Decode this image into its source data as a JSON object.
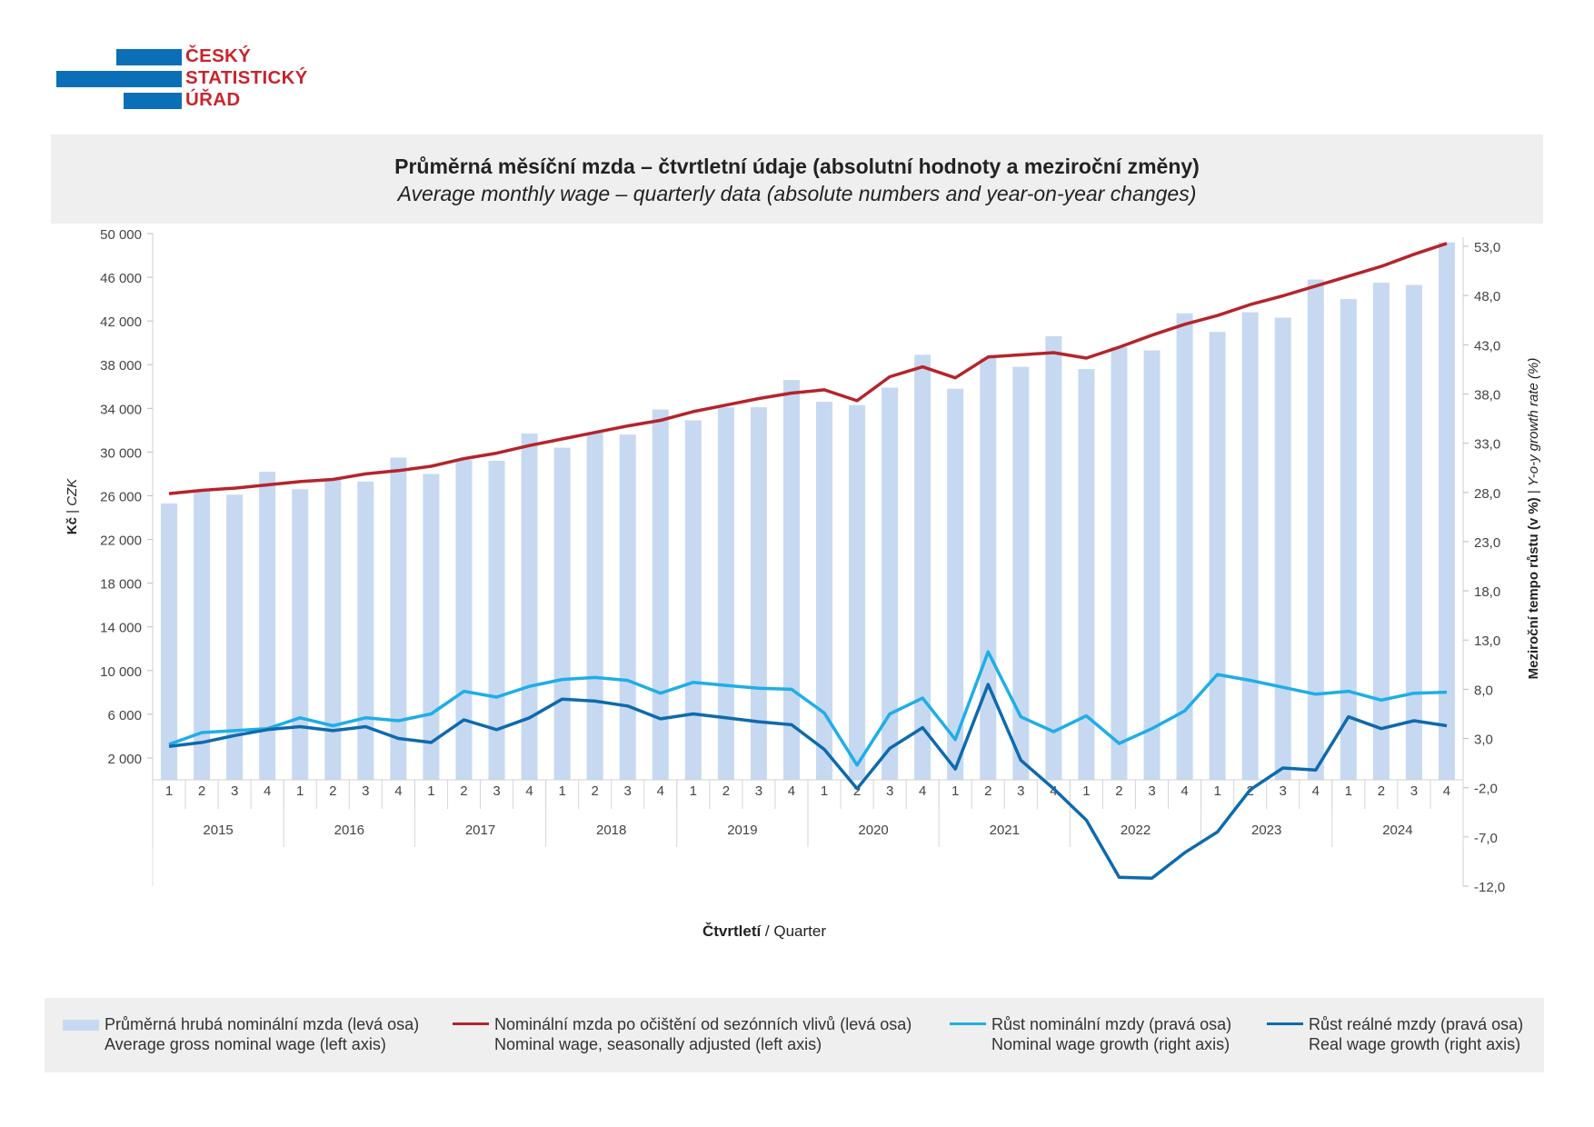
{
  "logo": {
    "line1": "ČESKÝ",
    "line2": "STATISTICKÝ",
    "line3": "ÚŘAD"
  },
  "header": {
    "title_cz": "Průměrná měsíční mzda – čtvrtletní údaje (absolutní hodnoty a meziroční změny)",
    "title_en": "Average monthly wage – quarterly data (absolute numbers and year-on-year changes)"
  },
  "colors": {
    "bars": "#c6d9f1",
    "seasonal": "#b5242b",
    "nominal_growth": "#1eaee7",
    "real_growth": "#0e6aad"
  },
  "chart_data": {
    "type": "bar+line",
    "title": "Průměrná měsíční mzda – čtvrtletní údaje (absolutní hodnoty a meziroční změny)",
    "subtitle": "Average monthly wage – quarterly data (absolute numbers and year-on-year changes)",
    "xlabel_cz": "Čtvrtletí",
    "xlabel_en": "Quarter",
    "ylabel_left_cz": "Kč",
    "ylabel_left_en": "CZK",
    "ylabel_right_cz": "Meziroční tempo růstu (v %)",
    "ylabel_right_en": "Y-o-y growth rate (%)",
    "years": [
      "2015",
      "2016",
      "2017",
      "2018",
      "2019",
      "2020",
      "2021",
      "2022",
      "2023",
      "2024"
    ],
    "quarters": [
      "1",
      "2",
      "3",
      "4"
    ],
    "y_left_ticks": [
      "50 000",
      "46 000",
      "42 000",
      "38 000",
      "34 000",
      "30 000",
      "26 000",
      "22 000",
      "18 000",
      "14 000",
      "10 000",
      "6 000",
      "2 000"
    ],
    "y_left_tick_values": [
      50000,
      46000,
      42000,
      38000,
      34000,
      30000,
      26000,
      22000,
      18000,
      14000,
      10000,
      6000,
      2000
    ],
    "y_left_range": [
      0,
      50000
    ],
    "y_right_ticks": [
      "53,0",
      "48,0",
      "43,0",
      "38,0",
      "33,0",
      "28,0",
      "23,0",
      "18,0",
      "13,0",
      "8,0",
      "3,0",
      "-2,0",
      "-7,0",
      "-12,0"
    ],
    "y_right_tick_values": [
      53,
      48,
      43,
      38,
      33,
      28,
      23,
      18,
      13,
      8,
      3,
      -2,
      -7,
      -12
    ],
    "y_right_range": [
      -12,
      53
    ],
    "grid": false,
    "legend_position": "bottom",
    "series": [
      {
        "name": "Průměrná hrubá nominální mzda (levá osa)",
        "name_en": "Average gross nominal wage (left axis)",
        "type": "bar",
        "axis": "left",
        "values": [
          25300,
          26500,
          26100,
          28200,
          26600,
          27600,
          27300,
          29500,
          28000,
          29300,
          29200,
          31700,
          30400,
          31800,
          31600,
          33900,
          32900,
          34100,
          34100,
          36600,
          34600,
          34300,
          35900,
          38900,
          35800,
          38600,
          37800,
          40600,
          37600,
          39600,
          39300,
          42700,
          41000,
          42800,
          42300,
          45800,
          44000,
          45500,
          45300,
          49200
        ]
      },
      {
        "name": "Nominální mzda po očištění od sezónních vlivů (levá osa)",
        "name_en": "Nominal wage, seasonally adjusted (left axis)",
        "type": "line",
        "axis": "left",
        "values": [
          26200,
          26500,
          26700,
          27000,
          27300,
          27500,
          28000,
          28300,
          28700,
          29400,
          29900,
          30600,
          31200,
          31800,
          32400,
          32900,
          33700,
          34300,
          34900,
          35400,
          35700,
          34700,
          36900,
          37800,
          36800,
          38700,
          38900,
          39100,
          38600,
          39600,
          40700,
          41700,
          42500,
          43500,
          44300,
          45200,
          46100,
          47000,
          48100,
          49100
        ]
      },
      {
        "name": "Růst nominální mzdy (pravá osa)",
        "name_en": "Nominal wage growth (right axis)",
        "type": "line",
        "axis": "right",
        "values": [
          2.4,
          3.6,
          3.8,
          4.0,
          5.1,
          4.3,
          5.1,
          4.8,
          5.5,
          7.8,
          7.2,
          8.3,
          9.0,
          9.2,
          8.9,
          7.6,
          8.7,
          8.4,
          8.1,
          8.0,
          5.6,
          0.3,
          5.5,
          7.1,
          2.9,
          11.8,
          5.2,
          3.7,
          5.3,
          2.5,
          4.0,
          5.8,
          9.5,
          8.9,
          8.2,
          7.5,
          7.8,
          6.9,
          7.6,
          7.7
        ]
      },
      {
        "name": "Růst reálné mzdy (pravá osa)",
        "name_en": "Real wage growth (right axis)",
        "type": "line",
        "axis": "right",
        "values": [
          2.2,
          2.6,
          3.3,
          3.9,
          4.2,
          3.8,
          4.2,
          3.0,
          2.6,
          4.9,
          3.9,
          5.1,
          7.0,
          6.8,
          6.3,
          5.0,
          5.5,
          5.1,
          4.7,
          4.4,
          1.9,
          -2.1,
          2.0,
          4.1,
          -0.1,
          8.5,
          0.8,
          -2.1,
          -5.3,
          -11.1,
          -11.2,
          -8.6,
          -6.5,
          -2.2,
          0.0,
          -0.2,
          5.2,
          4.0,
          4.8,
          4.3
        ]
      }
    ]
  },
  "legend": [
    {
      "cz": "Průměrná hrubá nominální mzda (levá osa)",
      "en": "Average gross nominal wage (left axis)"
    },
    {
      "cz": "Nominální mzda po očištění od sezónních vlivů (levá osa)",
      "en": "Nominal wage, seasonally adjusted (left axis)"
    },
    {
      "cz": "Růst nominální mzdy (pravá osa)",
      "en": "Nominal wage growth (right axis)"
    },
    {
      "cz": "Růst reálné mzdy (pravá osa)",
      "en": "Real wage growth (right axis)"
    }
  ]
}
